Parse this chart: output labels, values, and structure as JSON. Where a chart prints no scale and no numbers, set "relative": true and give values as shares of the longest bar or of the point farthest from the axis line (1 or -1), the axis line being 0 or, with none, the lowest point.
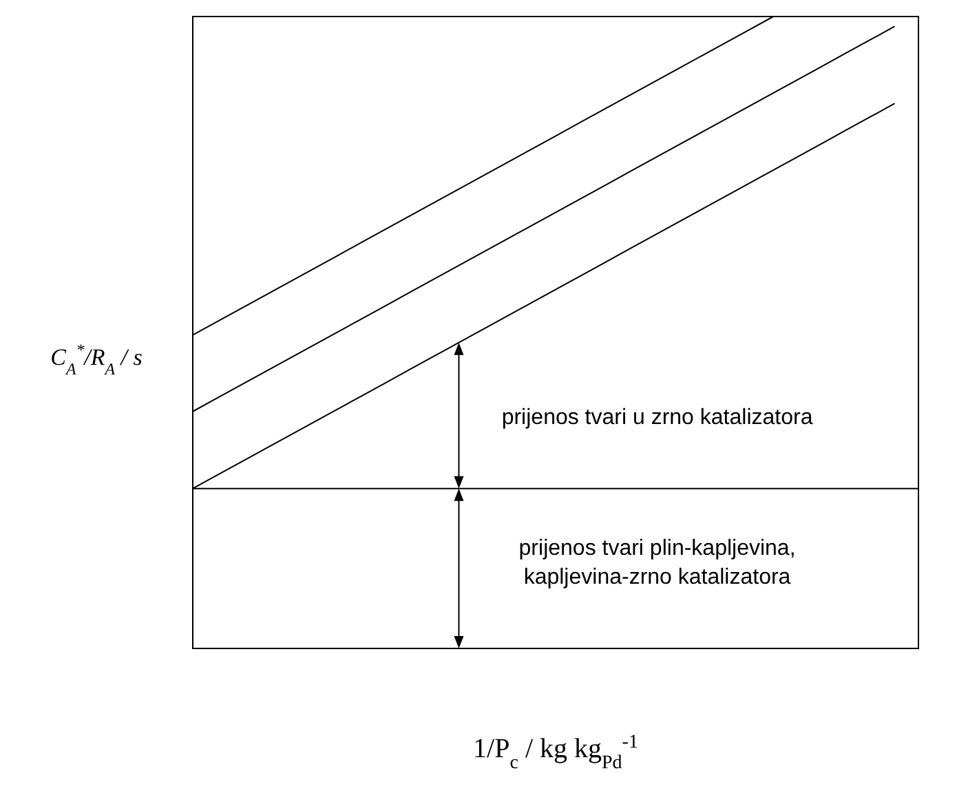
{
  "chart_data": {
    "type": "line",
    "relative": true,
    "xlabel": "1/P$_{c}$ / kg kg$_{Pd}$$^{-1}$",
    "ylabel": "C$_{A}$$^{*}$/R$_{A}$ / s",
    "marker": "none",
    "line_style": "solid",
    "categories": [
      null,
      null,
      null,
      null,
      null,
      null,
      null,
      null,
      null,
      null,
      null,
      null,
      null,
      null,
      null,
      null,
      null,
      null,
      null,
      null,
      null,
      null,
      null,
      null,
      null,
      null,
      null,
      null,
      null,
      null,
      null
    ],
    "series": [
      {
        "color": "#000000",
        "values": [
          0.496,
          0.517,
          0.538,
          0.559,
          0.58,
          0.601,
          0.622,
          0.643,
          0.664,
          0.685,
          0.706,
          0.727,
          0.748,
          0.769,
          0.79,
          0.811,
          0.832,
          0.853,
          0.874,
          0.895,
          0.916,
          0.937,
          0.958,
          0.979,
          1.0,
          null,
          null,
          null,
          null,
          null,
          null
        ]
      },
      {
        "color": "#000000",
        "values": [
          0.375,
          0.396,
          0.417,
          0.438,
          0.459,
          0.48,
          0.501,
          0.522,
          0.543,
          0.564,
          0.585,
          0.606,
          0.627,
          0.648,
          0.669,
          0.69,
          0.711,
          0.732,
          0.753,
          0.774,
          0.795,
          0.816,
          0.837,
          0.858,
          0.879,
          0.9,
          0.921,
          0.942,
          0.963,
          0.984,
          null
        ]
      },
      {
        "color": "#000000",
        "values": [
          0.253,
          0.274,
          0.295,
          0.316,
          0.337,
          0.358,
          0.379,
          0.4,
          0.421,
          0.442,
          0.463,
          0.484,
          0.505,
          0.526,
          0.547,
          0.568,
          0.589,
          0.61,
          0.631,
          0.652,
          0.673,
          0.694,
          0.715,
          0.736,
          0.757,
          0.778,
          0.799,
          0.82,
          0.841,
          0.862,
          null
        ]
      },
      {
        "color": "#000000",
        "values": [
          0.253,
          0.253,
          0.253,
          0.253,
          0.253,
          0.253,
          0.253,
          0.253,
          0.253,
          0.253,
          0.253,
          0.253,
          0.253,
          0.253,
          0.253,
          0.253,
          0.253,
          0.253,
          0.253,
          0.253,
          0.253,
          0.253,
          0.253,
          0.253,
          0.253,
          0.253,
          0.253,
          0.253,
          0.253,
          0.253,
          0.253
        ]
      }
    ],
    "annotations": [
      "prijenos tvari u zrno katalizatora",
      "prijenos tvari plin-kapljevina,\nkapljevina-zrno katalizatora"
    ]
  }
}
